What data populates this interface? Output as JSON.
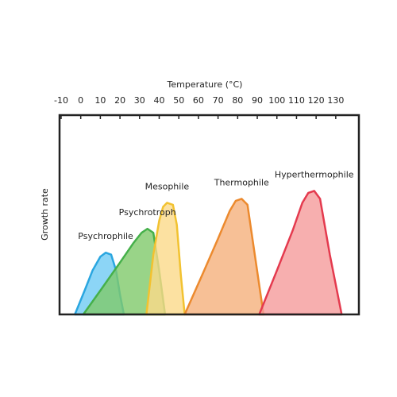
{
  "chart_data": {
    "type": "area",
    "x_label": "Temperature (°C)",
    "y_label": "Growth rate",
    "xlim": [
      -10.8,
      141.8
    ],
    "xticks": [
      -10,
      0,
      10,
      20,
      30,
      40,
      50,
      60,
      70,
      80,
      90,
      100,
      110,
      120,
      130
    ],
    "ylim": [
      0,
      1
    ],
    "series": [
      {
        "name": "Psychrophile",
        "color": "#2aa6e0",
        "fill": "#6fcaf4",
        "x": [
          -3,
          2,
          6,
          10,
          12.7,
          15.5,
          18,
          20,
          22
        ],
        "values": [
          0,
          0.12,
          0.22,
          0.29,
          0.31,
          0.3,
          0.22,
          0.1,
          0
        ]
      },
      {
        "name": "Psychrotroph",
        "color": "#45b04a",
        "fill": "#7fc96a",
        "x": [
          1.3,
          10,
          20,
          27,
          31,
          34,
          37,
          40,
          43
        ],
        "values": [
          0,
          0.12,
          0.26,
          0.36,
          0.41,
          0.43,
          0.41,
          0.22,
          0
        ]
      },
      {
        "name": "Mesophile",
        "color": "#f2c230",
        "fill": "#fbd98a",
        "x": [
          33.5,
          37,
          40,
          42,
          44,
          47,
          49,
          51,
          53
        ],
        "values": [
          0,
          0.3,
          0.47,
          0.54,
          0.56,
          0.55,
          0.45,
          0.2,
          0
        ]
      },
      {
        "name": "Thermophile",
        "color": "#ec8a2e",
        "fill": "#f5b07c",
        "x": [
          53,
          62,
          70,
          76,
          79,
          82,
          85,
          89,
          93.2
        ],
        "values": [
          0,
          0.2,
          0.38,
          0.52,
          0.57,
          0.58,
          0.55,
          0.28,
          0
        ]
      },
      {
        "name": "Hyperthermophile",
        "color": "#e43a4e",
        "fill": "#f59b9b",
        "x": [
          91,
          100,
          108,
          113,
          116,
          119,
          122,
          127,
          133
        ],
        "values": [
          0,
          0.22,
          0.42,
          0.56,
          0.61,
          0.62,
          0.58,
          0.3,
          0
        ]
      }
    ]
  }
}
